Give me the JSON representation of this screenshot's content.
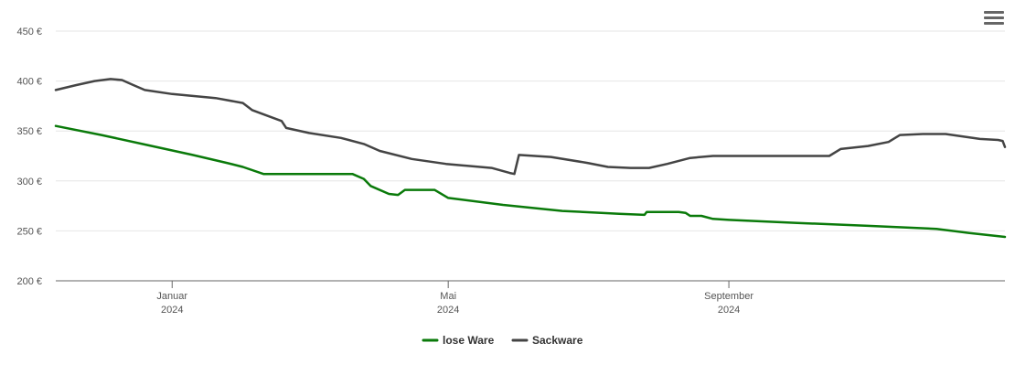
{
  "menu": {
    "icon": "hamburger-menu-icon"
  },
  "chart_data": {
    "type": "line",
    "x_axis": {
      "type": "date",
      "range": [
        "2023-11-11",
        "2024-12-31"
      ],
      "ticks": [
        {
          "date": "2024-01-01",
          "label": "Januar",
          "sublabel": "2024"
        },
        {
          "date": "2024-05-01",
          "label": "Mai",
          "sublabel": "2024"
        },
        {
          "date": "2024-09-01",
          "label": "September",
          "sublabel": "2024"
        }
      ]
    },
    "y_axis": {
      "ylim": [
        200,
        450
      ],
      "ticks": [
        {
          "value": 200,
          "label": "200 €"
        },
        {
          "value": 250,
          "label": "250 €"
        },
        {
          "value": 300,
          "label": "300 €"
        },
        {
          "value": 350,
          "label": "350 €"
        },
        {
          "value": 400,
          "label": "400 €"
        },
        {
          "value": 450,
          "label": "450 €"
        }
      ],
      "grid": true
    },
    "legend_position": "bottom-center",
    "series": [
      {
        "name": "lose Ware",
        "color": "#0a7a0a",
        "points": [
          [
            "2023-11-11",
            355
          ],
          [
            "2023-12-01",
            346
          ],
          [
            "2023-12-21",
            336
          ],
          [
            "2024-01-10",
            326
          ],
          [
            "2024-01-25",
            318
          ],
          [
            "2024-02-01",
            314
          ],
          [
            "2024-02-10",
            307
          ],
          [
            "2024-02-20",
            307
          ],
          [
            "2024-03-10",
            307
          ],
          [
            "2024-03-20",
            307
          ],
          [
            "2024-03-25",
            302
          ],
          [
            "2024-03-28",
            295
          ],
          [
            "2024-04-05",
            287
          ],
          [
            "2024-04-09",
            286
          ],
          [
            "2024-04-12",
            291
          ],
          [
            "2024-04-25",
            291
          ],
          [
            "2024-05-01",
            283
          ],
          [
            "2024-05-25",
            276
          ],
          [
            "2024-06-20",
            270
          ],
          [
            "2024-07-15",
            267
          ],
          [
            "2024-07-26",
            266
          ],
          [
            "2024-07-27",
            269
          ],
          [
            "2024-08-10",
            269
          ],
          [
            "2024-08-13",
            268
          ],
          [
            "2024-08-15",
            265
          ],
          [
            "2024-08-20",
            265
          ],
          [
            "2024-08-25",
            262
          ],
          [
            "2024-09-01",
            261
          ],
          [
            "2024-10-01",
            258
          ],
          [
            "2024-11-01",
            255
          ],
          [
            "2024-12-01",
            252
          ],
          [
            "2024-12-15",
            248
          ],
          [
            "2024-12-31",
            244
          ]
        ]
      },
      {
        "name": "Sackware",
        "color": "#444444",
        "points": [
          [
            "2023-11-11",
            391
          ],
          [
            "2023-11-20",
            396
          ],
          [
            "2023-11-28",
            400
          ],
          [
            "2023-12-05",
            402
          ],
          [
            "2023-12-10",
            401
          ],
          [
            "2023-12-15",
            396
          ],
          [
            "2023-12-20",
            391
          ],
          [
            "2024-01-01",
            387
          ],
          [
            "2024-01-20",
            383
          ],
          [
            "2024-02-01",
            378
          ],
          [
            "2024-02-05",
            371
          ],
          [
            "2024-02-12",
            365
          ],
          [
            "2024-02-18",
            360
          ],
          [
            "2024-02-20",
            353
          ],
          [
            "2024-03-01",
            348
          ],
          [
            "2024-03-15",
            343
          ],
          [
            "2024-03-25",
            337
          ],
          [
            "2024-04-01",
            330
          ],
          [
            "2024-04-15",
            322
          ],
          [
            "2024-04-30",
            317
          ],
          [
            "2024-05-20",
            313
          ],
          [
            "2024-05-28",
            308
          ],
          [
            "2024-05-30",
            307
          ],
          [
            "2024-06-01",
            326
          ],
          [
            "2024-06-15",
            324
          ],
          [
            "2024-07-01",
            318
          ],
          [
            "2024-07-10",
            314
          ],
          [
            "2024-07-20",
            313
          ],
          [
            "2024-07-28",
            313
          ],
          [
            "2024-08-05",
            317
          ],
          [
            "2024-08-15",
            323
          ],
          [
            "2024-08-25",
            325
          ],
          [
            "2024-10-10",
            325
          ],
          [
            "2024-10-15",
            325
          ],
          [
            "2024-10-20",
            332
          ],
          [
            "2024-11-01",
            335
          ],
          [
            "2024-11-10",
            339
          ],
          [
            "2024-11-15",
            346
          ],
          [
            "2024-11-25",
            347
          ],
          [
            "2024-12-05",
            347
          ],
          [
            "2024-12-20",
            342
          ],
          [
            "2024-12-28",
            341
          ],
          [
            "2024-12-30",
            340
          ],
          [
            "2024-12-31",
            334
          ]
        ]
      }
    ]
  }
}
